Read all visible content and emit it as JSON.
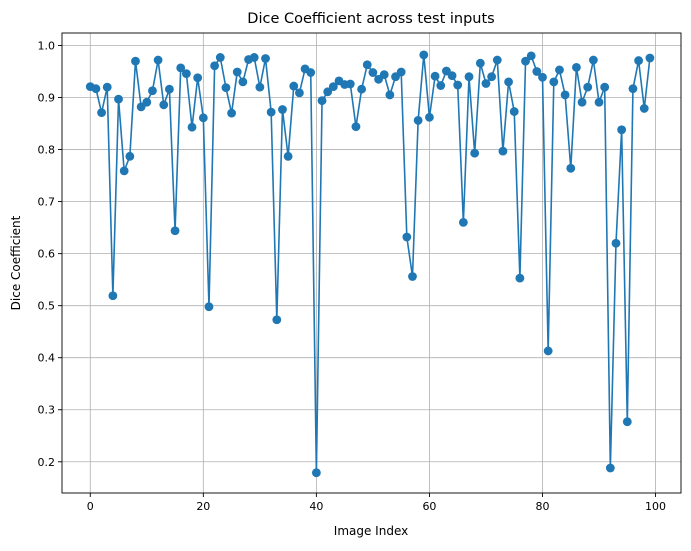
{
  "chart_data": {
    "type": "line",
    "title": "Dice Coefficient across test inputs",
    "xlabel": "Image Index",
    "ylabel": "Dice Coefficient",
    "xlim": [
      -5,
      104.5
    ],
    "ylim": [
      0.14,
      1.024
    ],
    "xticks": [
      0,
      20,
      40,
      60,
      80,
      100
    ],
    "yticks": [
      0.2,
      0.3,
      0.4,
      0.5,
      0.6,
      0.7,
      0.8,
      0.9,
      1.0
    ],
    "xtick_labels": [
      "0",
      "20",
      "40",
      "60",
      "80",
      "100"
    ],
    "ytick_labels": [
      "0.2",
      "0.3",
      "0.4",
      "0.5",
      "0.6",
      "0.7",
      "0.8",
      "0.9",
      "1.0"
    ],
    "grid": true,
    "marker": "circle",
    "color": "#1f77b4",
    "series": [
      {
        "x": [
          0,
          1,
          2,
          3,
          4,
          5,
          6,
          7,
          8,
          9,
          10,
          11,
          12,
          13,
          14,
          15,
          16,
          17,
          18,
          19,
          20,
          21,
          22,
          23,
          24,
          25,
          26,
          27,
          28,
          29,
          30,
          31,
          32,
          33,
          34,
          35,
          36,
          37,
          38,
          39,
          40,
          41,
          42,
          43,
          44,
          45,
          46,
          47,
          48,
          49,
          50,
          51,
          52,
          53,
          54,
          55,
          56,
          57,
          58,
          59,
          60,
          61,
          62,
          63,
          64,
          65,
          66,
          67,
          68,
          69,
          70,
          71,
          72,
          73,
          74,
          75,
          76,
          77,
          78,
          79,
          80,
          81,
          82,
          83,
          84,
          85,
          86,
          87,
          88,
          89,
          90,
          91,
          92,
          93,
          94,
          95,
          96,
          97,
          98,
          99
        ],
        "values": [
          0.921,
          0.917,
          0.871,
          0.92,
          0.519,
          0.897,
          0.759,
          0.787,
          0.97,
          0.882,
          0.891,
          0.913,
          0.972,
          0.886,
          0.916,
          0.644,
          0.957,
          0.946,
          0.843,
          0.938,
          0.861,
          0.498,
          0.961,
          0.977,
          0.919,
          0.87,
          0.949,
          0.93,
          0.973,
          0.977,
          0.92,
          0.975,
          0.872,
          0.473,
          0.877,
          0.787,
          0.922,
          0.909,
          0.955,
          0.948,
          0.179,
          0.894,
          0.911,
          0.921,
          0.932,
          0.925,
          0.926,
          0.844,
          0.916,
          0.963,
          0.948,
          0.935,
          0.944,
          0.905,
          0.94,
          0.949,
          0.632,
          0.556,
          0.856,
          0.982,
          0.862,
          0.941,
          0.923,
          0.951,
          0.942,
          0.924,
          0.66,
          0.94,
          0.793,
          0.966,
          0.927,
          0.94,
          0.972,
          0.797,
          0.93,
          0.873,
          0.553,
          0.97,
          0.98,
          0.95,
          0.939,
          0.413,
          0.93,
          0.953,
          0.905,
          0.764,
          0.958,
          0.891,
          0.92,
          0.972,
          0.891,
          0.92,
          0.188,
          0.62,
          0.838,
          0.277,
          0.917,
          0.971,
          0.879,
          0.976
        ]
      }
    ]
  }
}
